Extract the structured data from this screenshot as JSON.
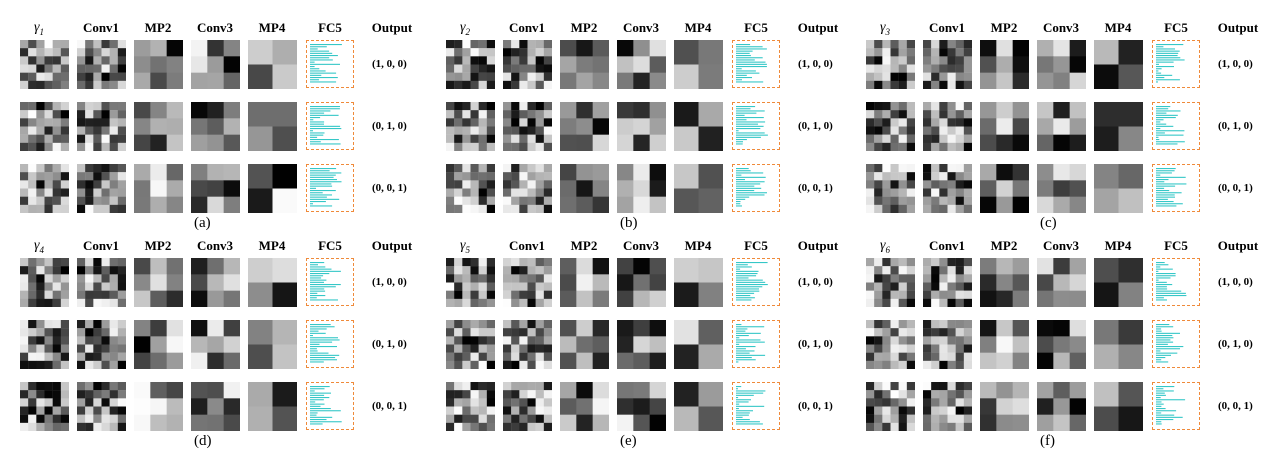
{
  "column_headers": [
    "Conv1",
    "MP2",
    "Conv3",
    "MP4",
    "FC5",
    "Output"
  ],
  "input_symbol": "γ",
  "output_labels": [
    "(1, 0, 0)",
    "(0, 1, 0)",
    "(0, 0, 1)"
  ],
  "fc_bar_color": "#35c7c7",
  "fc_border_color": "#ef8a3a",
  "panels": [
    {
      "symbol_sub": "1",
      "caption": "(a)"
    },
    {
      "symbol_sub": "2",
      "caption": "(b)"
    },
    {
      "symbol_sub": "3",
      "caption": "(c)"
    },
    {
      "symbol_sub": "4",
      "caption": "(d)"
    },
    {
      "symbol_sub": "5",
      "caption": "(e)"
    },
    {
      "symbol_sub": "6",
      "caption": "(f)"
    }
  ]
}
